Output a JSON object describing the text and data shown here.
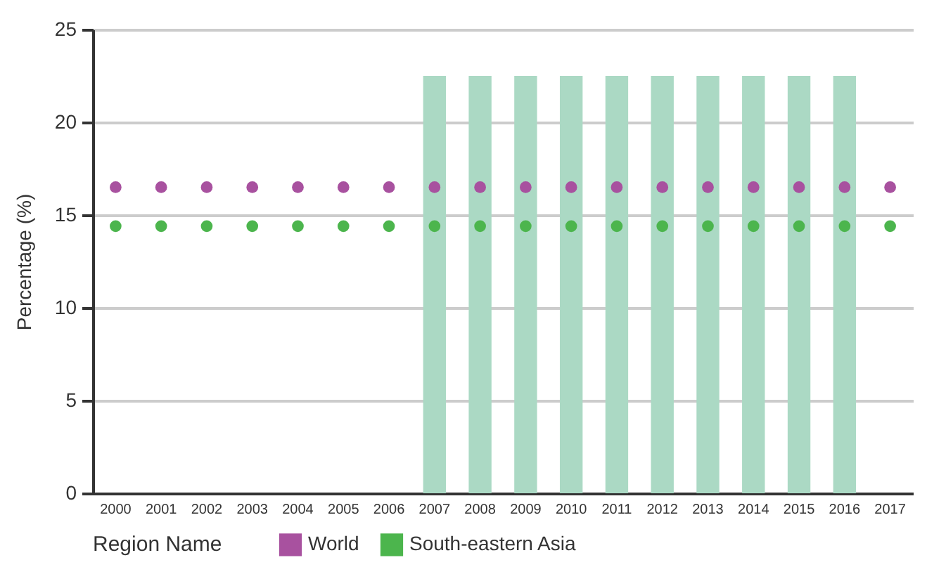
{
  "chart_data": {
    "type": "scatter",
    "ylabel": "Percentage (%)",
    "legend_title": "Region Name",
    "legend": "bottom",
    "grid": "y",
    "marker": "circle",
    "categories": [
      "2000",
      "2001",
      "2002",
      "2003",
      "2004",
      "2005",
      "2006",
      "2007",
      "2008",
      "2009",
      "2010",
      "2011",
      "2012",
      "2013",
      "2014",
      "2015",
      "2016",
      "2017"
    ],
    "ylim": [
      0,
      25
    ],
    "yticks": [
      0,
      5,
      10,
      15,
      20,
      25
    ],
    "series": [
      {
        "type": "bar",
        "color": "#abd9c4",
        "values": [
          null,
          null,
          null,
          null,
          null,
          null,
          null,
          22.5,
          22.5,
          22.5,
          22.5,
          22.5,
          22.5,
          22.5,
          22.5,
          22.5,
          22.5,
          null
        ]
      },
      {
        "name": "World",
        "color": "#a8519f",
        "values": [
          16.5,
          16.5,
          16.5,
          16.5,
          16.5,
          16.5,
          16.5,
          16.5,
          16.5,
          16.5,
          16.5,
          16.5,
          16.5,
          16.5,
          16.5,
          16.5,
          16.5,
          16.5
        ]
      },
      {
        "name": "South-eastern Asia",
        "color": "#4cb54d",
        "values": [
          14.4,
          14.4,
          14.4,
          14.4,
          14.4,
          14.4,
          14.4,
          14.4,
          14.4,
          14.4,
          14.4,
          14.4,
          14.4,
          14.4,
          14.4,
          14.4,
          14.4,
          14.4
        ]
      }
    ]
  }
}
